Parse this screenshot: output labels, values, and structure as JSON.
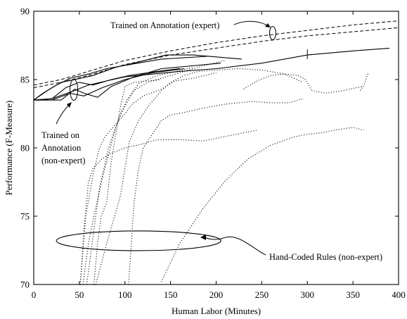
{
  "chart_data": {
    "type": "line",
    "xlabel": "Human Labor (Minutes)",
    "ylabel": "Performance (F-Measure)",
    "xlim": [
      0,
      400
    ],
    "ylim": [
      70,
      90
    ],
    "xticks": [
      0,
      50,
      100,
      150,
      200,
      250,
      300,
      350,
      400
    ],
    "yticks": [
      70,
      75,
      80,
      85,
      90
    ],
    "grid": false,
    "annotations": {
      "expert": "Trained on Annotation (expert)",
      "nonexpert_lines": [
        "Trained on",
        "Annotation",
        "(non-expert)"
      ],
      "handcoded": "Hand-Coded Rules (non-expert)"
    },
    "series": [
      {
        "style": "dashed",
        "x": [
          0,
          30,
          60,
          100,
          150,
          200,
          250,
          300,
          350,
          400
        ],
        "y": [
          84.6,
          85.0,
          85.6,
          86.4,
          87.1,
          87.7,
          88.2,
          88.6,
          89.0,
          89.3
        ]
      },
      {
        "style": "dashed",
        "x": [
          0,
          30,
          60,
          100,
          150,
          200,
          250,
          300,
          350,
          400
        ],
        "y": [
          84.4,
          84.8,
          85.3,
          86.1,
          86.8,
          87.3,
          87.8,
          88.2,
          88.5,
          88.8
        ]
      },
      {
        "style": "solid",
        "x": [
          0,
          20,
          45,
          60,
          80,
          100,
          130,
          160,
          200,
          250,
          300,
          350,
          390
        ],
        "y": [
          83.5,
          83.6,
          84.2,
          84.6,
          84.9,
          85.2,
          85.4,
          85.6,
          85.8,
          86.2,
          86.8,
          87.1,
          87.3
        ]
      },
      {
        "style": "solid",
        "x": [
          0,
          10,
          25,
          40,
          60,
          80,
          105,
          140,
          190
        ],
        "y": [
          83.5,
          84.0,
          84.6,
          85.1,
          85.4,
          85.8,
          86.1,
          86.5,
          86.7
        ]
      },
      {
        "style": "solid",
        "x": [
          0,
          15,
          30,
          45,
          65,
          90,
          110,
          145,
          175,
          228
        ],
        "y": [
          83.5,
          84.2,
          84.8,
          85.0,
          85.3,
          85.9,
          86.2,
          86.8,
          86.8,
          86.5
        ]
      },
      {
        "style": "solid",
        "x": [
          0,
          20,
          40,
          55,
          75,
          100,
          130,
          165
        ],
        "y": [
          83.5,
          83.5,
          84.0,
          83.8,
          84.4,
          85.0,
          85.5,
          85.8
        ]
      },
      {
        "style": "solid",
        "x": [
          0,
          30,
          45,
          55,
          70,
          85,
          110,
          140,
          205
        ],
        "y": [
          83.5,
          83.5,
          84.3,
          84.0,
          83.7,
          84.5,
          85.2,
          85.8,
          86.2
        ]
      },
      {
        "style": "solid",
        "x": [
          0,
          20,
          35,
          50,
          65,
          85,
          105,
          135,
          160
        ],
        "y": [
          83.5,
          83.6,
          84.4,
          84.8,
          84.6,
          85.0,
          85.3,
          85.6,
          85.8
        ]
      },
      {
        "style": "dotted",
        "x": [
          58,
          66,
          72,
          82,
          95,
          110,
          125,
          145,
          165,
          185,
          210
        ],
        "y": [
          70,
          74,
          77,
          80,
          82.5,
          84.2,
          84.8,
          85.2,
          85.6,
          86.0,
          86.4
        ]
      },
      {
        "style": "dotted",
        "x": [
          54,
          60,
          66,
          76,
          90,
          102,
          115,
          135,
          150,
          175
        ],
        "y": [
          70,
          73,
          75,
          78,
          81.5,
          83.5,
          84.7,
          85.3,
          85.5,
          85.9
        ]
      },
      {
        "style": "dotted",
        "x": [
          51,
          57,
          65,
          72,
          78,
          88,
          100,
          108,
          120,
          140,
          155,
          175,
          200
        ],
        "y": [
          70,
          75,
          78,
          80,
          80.8,
          81.6,
          82.5,
          83.2,
          83.8,
          84.3,
          84.9,
          85.1,
          85.5
        ]
      },
      {
        "style": "dotted",
        "x": [
          66,
          70,
          74,
          80,
          85,
          90,
          95,
          100,
          110,
          140
        ],
        "y": [
          70,
          73,
          75,
          76,
          79,
          81,
          83,
          84.5,
          84.8,
          85.0
        ]
      },
      {
        "style": "dotted",
        "x": [
          51,
          55,
          60,
          65,
          75,
          85,
          100,
          120,
          135,
          150,
          160,
          185,
          215,
          245
        ],
        "y": [
          70,
          74,
          77.5,
          78.5,
          79.2,
          79.6,
          80.0,
          80.3,
          80.6,
          80.6,
          80.6,
          80.5,
          80.9,
          81.3
        ]
      },
      {
        "style": "dotted",
        "x": [
          104,
          110,
          115,
          120,
          130,
          140,
          150,
          165,
          185,
          210,
          240,
          260,
          280,
          295
        ],
        "y": [
          70,
          76,
          78.5,
          80,
          81,
          82,
          82.4,
          82.6,
          82.9,
          83.2,
          83.4,
          83.3,
          83.3,
          83.6
        ]
      },
      {
        "style": "dotted",
        "x": [
          68,
          80,
          95,
          105,
          115,
          125,
          140,
          150,
          165,
          180,
          200,
          225,
          250,
          275,
          295
        ],
        "y": [
          70,
          73,
          76.5,
          80.5,
          82,
          83,
          84.2,
          84.8,
          85.3,
          85.6,
          85.7,
          85.8,
          85.7,
          85.4,
          84.8
        ]
      },
      {
        "style": "dotted",
        "x": [
          230,
          245,
          260,
          275,
          290,
          298,
          305,
          320,
          340,
          360
        ],
        "y": [
          84.3,
          84.9,
          85.3,
          85.4,
          85.3,
          85.0,
          84.2,
          84.0,
          84.2,
          84.5
        ]
      },
      {
        "style": "dotted",
        "x": [
          140,
          160,
          185,
          210,
          235,
          260,
          285,
          300,
          315,
          330,
          340,
          350,
          362
        ],
        "y": [
          70.2,
          73,
          75.5,
          77.6,
          79.2,
          80.2,
          80.8,
          81.0,
          81.1,
          81.3,
          81.4,
          81.5,
          81.3
        ]
      },
      {
        "style": "dotted",
        "x": [
          358,
          362,
          365,
          367
        ],
        "y": [
          84.2,
          84.6,
          85.2,
          85.5
        ]
      }
    ]
  }
}
